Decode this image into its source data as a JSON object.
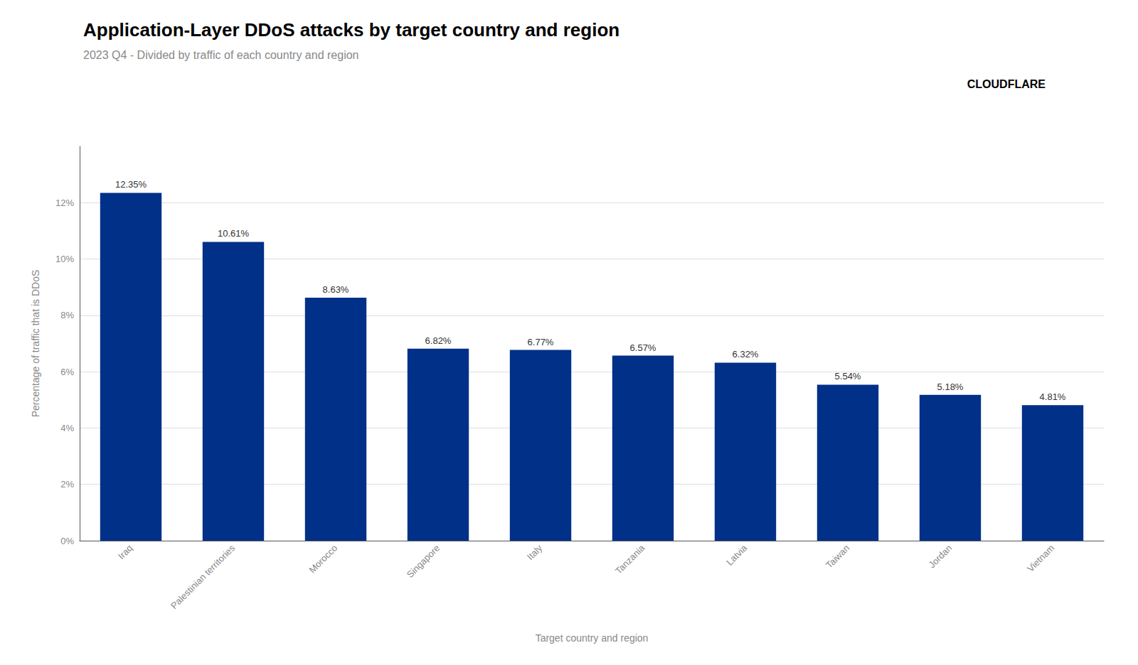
{
  "chart_data": {
    "type": "bar",
    "title": "Application-Layer DDoS attacks by target country and region",
    "subtitle": "2023 Q4 - Divided by traffic of each country and region",
    "xlabel": "Target country and region",
    "ylabel": "Percentage of traffic that is DDoS",
    "categories": [
      "Iraq",
      "Palestinian territories",
      "Morocco",
      "Singapore",
      "Italy",
      "Tanzania",
      "Latvia",
      "Taiwan",
      "Jordan",
      "Vietnam"
    ],
    "values": [
      12.35,
      10.61,
      8.63,
      6.82,
      6.77,
      6.57,
      6.32,
      5.54,
      5.18,
      4.81
    ],
    "value_labels": [
      "12.35%",
      "10.61%",
      "8.63%",
      "6.82%",
      "6.77%",
      "6.57%",
      "6.32%",
      "5.54%",
      "5.18%",
      "4.81%"
    ],
    "data_labels": true,
    "color": "#003087",
    "ylim": [
      0,
      14
    ],
    "yticks": [
      {
        "value": 0,
        "label": "0%"
      },
      {
        "value": 2,
        "label": "2%"
      },
      {
        "value": 4,
        "label": "4%"
      },
      {
        "value": 6,
        "label": "6%"
      },
      {
        "value": 8,
        "label": "8%"
      },
      {
        "value": 10,
        "label": "10%"
      },
      {
        "value": 12,
        "label": "12%"
      }
    ],
    "grid": true,
    "annotations": [
      "CLOUDFLARE"
    ]
  }
}
